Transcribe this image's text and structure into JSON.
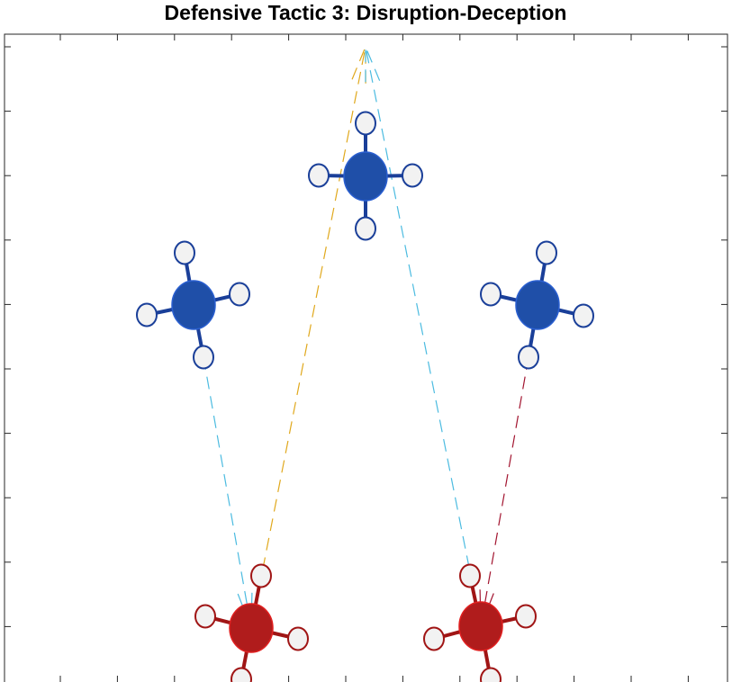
{
  "title": "Defensive Tactic 3: Disruption-Deception"
}
